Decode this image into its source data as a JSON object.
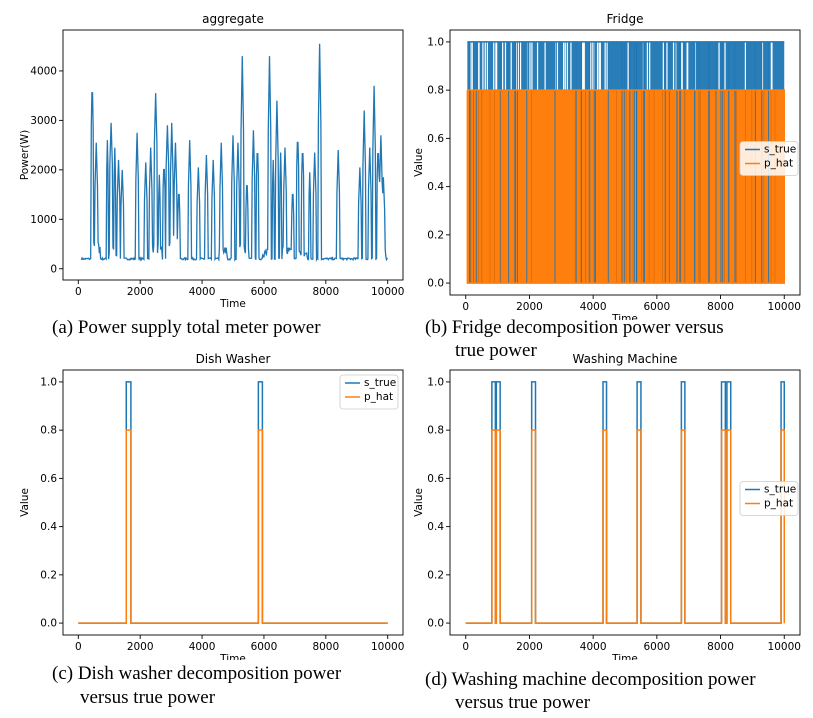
{
  "chart_data": [
    {
      "type": "line",
      "title": "aggregate",
      "xlabel": "Time",
      "ylabel": "Power(W)",
      "xlim": [
        0,
        10000
      ],
      "ylim": [
        0,
        4600
      ],
      "xticks": [
        0,
        2000,
        4000,
        6000,
        8000,
        10000
      ],
      "yticks": [
        0,
        1000,
        2000,
        3000,
        4000
      ],
      "legend": "none",
      "series": [
        {
          "color": "#1f77b4",
          "base": 200,
          "spikes": [
            {
              "x": 450,
              "w": 40,
              "v": 3900
            },
            {
              "x": 580,
              "w": 40,
              "v": 2550
            },
            {
              "x": 940,
              "w": 30,
              "v": 2600
            },
            {
              "x": 1060,
              "w": 50,
              "v": 2950
            },
            {
              "x": 1180,
              "w": 30,
              "v": 2450
            },
            {
              "x": 1300,
              "w": 40,
              "v": 2200
            },
            {
              "x": 1420,
              "w": 40,
              "v": 2000
            },
            {
              "x": 1900,
              "w": 40,
              "v": 2750
            },
            {
              "x": 2180,
              "w": 40,
              "v": 2150
            },
            {
              "x": 2340,
              "w": 40,
              "v": 2450
            },
            {
              "x": 2500,
              "w": 50,
              "v": 3550
            },
            {
              "x": 2620,
              "w": 30,
              "v": 1900
            },
            {
              "x": 2770,
              "w": 40,
              "v": 2200
            },
            {
              "x": 2880,
              "w": 50,
              "v": 2900
            },
            {
              "x": 3020,
              "w": 40,
              "v": 2950
            },
            {
              "x": 3140,
              "w": 40,
              "v": 2550
            },
            {
              "x": 3250,
              "w": 30,
              "v": 1700
            },
            {
              "x": 3600,
              "w": 40,
              "v": 2600
            },
            {
              "x": 3880,
              "w": 40,
              "v": 2050
            },
            {
              "x": 4140,
              "w": 40,
              "v": 2300
            },
            {
              "x": 4360,
              "w": 40,
              "v": 2200
            },
            {
              "x": 4620,
              "w": 40,
              "v": 2550
            },
            {
              "x": 5000,
              "w": 40,
              "v": 2700
            },
            {
              "x": 5160,
              "w": 40,
              "v": 2550
            },
            {
              "x": 5300,
              "w": 40,
              "v": 4300
            },
            {
              "x": 5450,
              "w": 30,
              "v": 1900
            },
            {
              "x": 5660,
              "w": 40,
              "v": 2800
            },
            {
              "x": 5790,
              "w": 40,
              "v": 2550
            },
            {
              "x": 6180,
              "w": 40,
              "v": 4300
            },
            {
              "x": 6300,
              "w": 30,
              "v": 2200
            },
            {
              "x": 6420,
              "w": 40,
              "v": 3400
            },
            {
              "x": 6540,
              "w": 30,
              "v": 2350
            },
            {
              "x": 6680,
              "w": 40,
              "v": 2450
            },
            {
              "x": 6930,
              "w": 30,
              "v": 1700
            },
            {
              "x": 7090,
              "w": 40,
              "v": 2800
            },
            {
              "x": 7250,
              "w": 40,
              "v": 2550
            },
            {
              "x": 7480,
              "w": 30,
              "v": 1950
            },
            {
              "x": 7640,
              "w": 40,
              "v": 2350
            },
            {
              "x": 7800,
              "w": 40,
              "v": 4550
            },
            {
              "x": 8400,
              "w": 40,
              "v": 2400
            },
            {
              "x": 9100,
              "w": 40,
              "v": 2050
            },
            {
              "x": 9240,
              "w": 40,
              "v": 3200
            },
            {
              "x": 9420,
              "w": 40,
              "v": 2450
            },
            {
              "x": 9560,
              "w": 40,
              "v": 3700
            },
            {
              "x": 9690,
              "w": 40,
              "v": 2550
            },
            {
              "x": 9780,
              "w": 40,
              "v": 2700
            },
            {
              "x": 9860,
              "w": 40,
              "v": 1850
            }
          ],
          "humps": [
            {
              "x1": 430,
              "x2": 700,
              "v": 550
            },
            {
              "x1": 1000,
              "x2": 1250,
              "v": 450
            },
            {
              "x1": 2300,
              "x2": 2700,
              "v": 500
            },
            {
              "x1": 2850,
              "x2": 3200,
              "v": 700
            },
            {
              "x1": 4550,
              "x2": 4800,
              "v": 450
            },
            {
              "x1": 5200,
              "x2": 5500,
              "v": 550
            },
            {
              "x1": 5950,
              "x2": 6200,
              "v": 400
            },
            {
              "x1": 6600,
              "x2": 6900,
              "v": 450
            },
            {
              "x1": 7100,
              "x2": 7400,
              "v": 380
            },
            {
              "x1": 9650,
              "x2": 9950,
              "v": 450
            }
          ]
        }
      ]
    },
    {
      "type": "line",
      "title": "Fridge",
      "xlabel": "Time",
      "ylabel": "Value",
      "xlim": [
        0,
        10000
      ],
      "ylim": [
        0,
        1
      ],
      "xticks": [
        0,
        2000,
        4000,
        6000,
        8000,
        10000
      ],
      "yticks": [
        0.0,
        0.2,
        0.4,
        0.6,
        0.8,
        1.0
      ],
      "legend": "center-right",
      "series": [
        {
          "name": "s_true",
          "color": "#1f77b4",
          "values": [
            0,
            1
          ]
        },
        {
          "name": "p_hat",
          "color": "#ff7f0e",
          "values": [
            0,
            0.8
          ]
        }
      ]
    },
    {
      "type": "line",
      "title": "Dish Washer",
      "xlabel": "Time",
      "ylabel": "Value",
      "xlim": [
        0,
        10000
      ],
      "ylim": [
        0,
        1
      ],
      "xticks": [
        0,
        2000,
        4000,
        6000,
        8000,
        10000
      ],
      "yticks": [
        0.0,
        0.2,
        0.4,
        0.6,
        0.8,
        1.0
      ],
      "legend": "top-right",
      "events": [
        [
          1550,
          1700
        ],
        [
          5820,
          5950
        ]
      ],
      "series": [
        {
          "name": "s_true",
          "color": "#1f77b4",
          "on": 1.0
        },
        {
          "name": "p_hat",
          "color": "#ff7f0e",
          "on": 0.8
        }
      ]
    },
    {
      "type": "line",
      "title": "Washing Machine",
      "xlabel": "Time",
      "ylabel": "Value",
      "xlim": [
        0,
        10000
      ],
      "ylim": [
        0,
        1
      ],
      "xticks": [
        0,
        2000,
        4000,
        6000,
        8000,
        10000
      ],
      "yticks": [
        0.0,
        0.2,
        0.4,
        0.6,
        0.8,
        1.0
      ],
      "legend": "center-right",
      "events": [
        [
          820,
          930
        ],
        [
          960,
          1080
        ],
        [
          2070,
          2190
        ],
        [
          4310,
          4420
        ],
        [
          5380,
          5500
        ],
        [
          6770,
          6880
        ],
        [
          8030,
          8150
        ],
        [
          8200,
          8320
        ],
        [
          9900,
          10000
        ]
      ],
      "series": [
        {
          "name": "s_true",
          "color": "#1f77b4",
          "on": 1.0
        },
        {
          "name": "p_hat",
          "color": "#ff7f0e",
          "on": 0.8
        }
      ]
    }
  ],
  "captions": {
    "a": "(a) Power supply total meter power",
    "b1": "(b) Fridge decomposition power versus",
    "b2": "true power",
    "c1": "(c) Dish washer decomposition power",
    "c2": "versus true power",
    "d1": "(d) Washing machine decomposition power",
    "d2": "versus true power"
  }
}
